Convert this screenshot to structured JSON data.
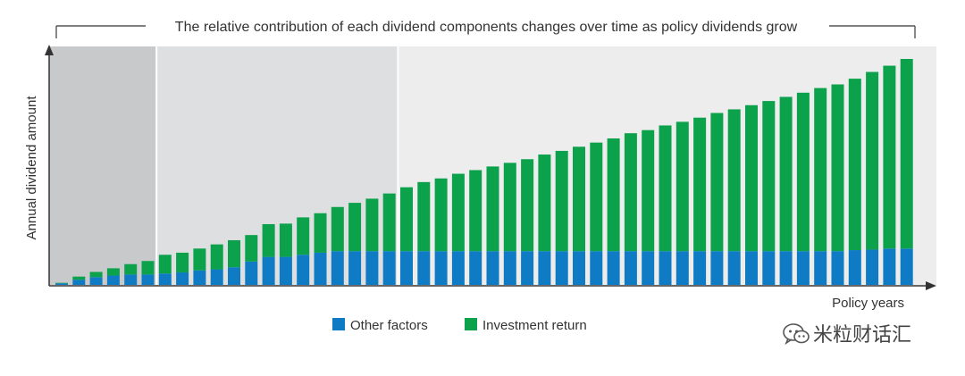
{
  "chart_data": {
    "type": "bar",
    "stacked": true,
    "title": "The relative contribution of each dividend components changes over time as policy dividends grow",
    "xlabel": "Policy years",
    "ylabel": "Annual dividend amount",
    "ylim": [
      0,
      100
    ],
    "grid": false,
    "legend_position": "bottom-center",
    "shaded_periods": [
      {
        "name": "early-period",
        "from_bar": 1,
        "to_bar": 6,
        "color": "#c8c9cb"
      },
      {
        "name": "middle-period",
        "from_bar": 7,
        "to_bar": 20,
        "color": "#dedfe1"
      },
      {
        "name": "late-period",
        "from_bar": 21,
        "to_bar": 50,
        "color": "#ededed"
      }
    ],
    "series": [
      {
        "name": "Other factors",
        "color": "#0f7bc4",
        "values": [
          0.6,
          2.0,
          3.0,
          3.6,
          4.0,
          4.0,
          4.4,
          4.8,
          5.6,
          6.0,
          6.8,
          9.0,
          10.8,
          10.8,
          11.6,
          12.4,
          13.0,
          13.0,
          13.0,
          13.0,
          13.0,
          13.0,
          13.0,
          13.0,
          13.0,
          13.0,
          13.0,
          13.0,
          13.0,
          13.0,
          13.0,
          13.0,
          13.0,
          13.0,
          13.0,
          13.0,
          13.0,
          13.0,
          13.0,
          13.0,
          13.0,
          13.0,
          13.0,
          13.0,
          13.0,
          13.0,
          13.4,
          13.6,
          14.0,
          14.0
        ]
      },
      {
        "name": "Investment return",
        "color": "#0ca24b",
        "values": [
          0.2,
          1.2,
          2.0,
          2.8,
          4.0,
          5.2,
          7.2,
          7.6,
          8.4,
          9.6,
          10.4,
          10.2,
          12.6,
          12.8,
          14.4,
          15.2,
          17.0,
          18.6,
          20.2,
          22.2,
          24.6,
          26.6,
          28.0,
          29.8,
          31.2,
          32.6,
          34.0,
          35.4,
          37.2,
          38.6,
          40.2,
          41.8,
          43.4,
          45.4,
          46.6,
          48.4,
          49.8,
          51.4,
          53.2,
          54.6,
          56.2,
          57.8,
          59.4,
          61.0,
          62.8,
          64.2,
          66.0,
          68.4,
          70.4,
          73.0
        ]
      }
    ]
  },
  "watermark": {
    "text": "米粒财话汇",
    "icon": "wechat-icon"
  }
}
